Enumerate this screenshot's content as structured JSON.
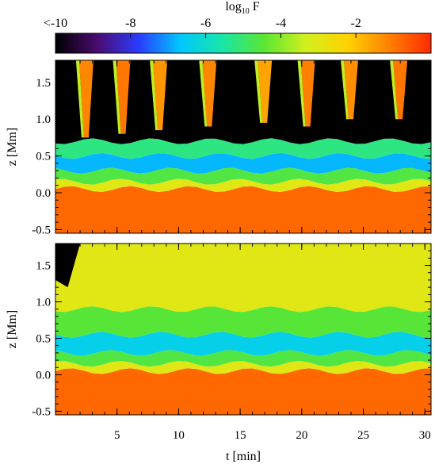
{
  "colorbar": {
    "title_main": "log",
    "title_sub": "10",
    "title_var": " F",
    "ticks": [
      {
        "value": -10,
        "label": "<-10"
      },
      {
        "value": -8,
        "label": "-8"
      },
      {
        "value": -6,
        "label": "-6"
      },
      {
        "value": -4,
        "label": "-4"
      },
      {
        "value": -2,
        "label": "-2"
      }
    ],
    "range": [
      -10,
      0
    ],
    "stops": [
      "#000000",
      "#4a0a6e",
      "#2a3cff",
      "#00c8ff",
      "#18e6a8",
      "#5ae632",
      "#d2f01e",
      "#ffd200",
      "#ff8000",
      "#ff2a00"
    ]
  },
  "chart_data": [
    {
      "type": "heatmap",
      "panel": "top",
      "title": "",
      "xlabel": "t [min]",
      "ylabel": "z [Mm]",
      "xlim": [
        0,
        30.5
      ],
      "ylim": [
        -0.55,
        1.8
      ],
      "xticks": [
        5,
        10,
        15,
        20,
        25,
        30
      ],
      "yticks": [
        -0.5,
        0.0,
        0.5,
        1.0,
        1.5
      ],
      "ytick_labels": [
        "-0.5",
        "0.0",
        "0.5",
        "1.0",
        "1.5"
      ],
      "colorscale_var": "log10 F",
      "bands": [
        {
          "z_min": -0.55,
          "z_max": 0.05,
          "value": -0.8
        },
        {
          "z_min": 0.05,
          "z_max": 0.15,
          "value": -3.0
        },
        {
          "z_min": 0.15,
          "z_max": 0.3,
          "value": -4.6
        },
        {
          "z_min": 0.3,
          "z_max": 0.5,
          "value": -6.8
        },
        {
          "z_min": 0.5,
          "z_max": 0.7,
          "value": -5.2
        },
        {
          "z_min": 0.7,
          "z_max": 1.8,
          "value": -10
        }
      ],
      "features": [
        {
          "kind": "spike",
          "t": 2.5,
          "z_base": 0.75,
          "z_top": 1.8,
          "value": -1.2
        },
        {
          "kind": "spike",
          "t": 5.5,
          "z_base": 0.8,
          "z_top": 1.8,
          "value": -1.0
        },
        {
          "kind": "spike",
          "t": 8.5,
          "z_base": 0.85,
          "z_top": 1.8,
          "value": -1.4
        },
        {
          "kind": "spike",
          "t": 12.5,
          "z_base": 0.9,
          "z_top": 1.8,
          "value": -1.2
        },
        {
          "kind": "spike",
          "t": 17.0,
          "z_base": 0.95,
          "z_top": 1.8,
          "value": -1.6
        },
        {
          "kind": "spike",
          "t": 20.5,
          "z_base": 0.9,
          "z_top": 1.8,
          "value": -1.1
        },
        {
          "kind": "spike",
          "t": 24.0,
          "z_base": 1.0,
          "z_top": 1.8,
          "value": -1.3
        },
        {
          "kind": "spike",
          "t": 28.0,
          "z_base": 1.0,
          "z_top": 1.8,
          "value": -1.0
        }
      ]
    },
    {
      "type": "heatmap",
      "panel": "bottom",
      "title": "",
      "xlabel": "t [min]",
      "ylabel": "z [Mm]",
      "xlim": [
        0,
        30.5
      ],
      "ylim": [
        -0.55,
        1.8
      ],
      "xticks": [
        5,
        10,
        15,
        20,
        25,
        30
      ],
      "xtick_labels": [
        "5",
        "10",
        "15",
        "20",
        "25",
        "30"
      ],
      "yticks": [
        -0.5,
        0.0,
        0.5,
        1.0,
        1.5
      ],
      "ytick_labels": [
        "-0.5",
        "0.0",
        "0.5",
        "1.0",
        "1.5"
      ],
      "colorscale_var": "log10 F",
      "bands": [
        {
          "z_min": -0.55,
          "z_max": 0.05,
          "value": -0.8
        },
        {
          "z_min": 0.05,
          "z_max": 0.15,
          "value": -3.0
        },
        {
          "z_min": 0.15,
          "z_max": 0.3,
          "value": -4.6
        },
        {
          "z_min": 0.3,
          "z_max": 0.55,
          "value": -6.4
        },
        {
          "z_min": 0.55,
          "z_max": 0.9,
          "value": -4.5
        },
        {
          "z_min": 0.9,
          "z_max": 1.8,
          "value": -3.0
        }
      ],
      "features": [
        {
          "kind": "dark-corner",
          "t_max": 2.0,
          "z_min": 1.2,
          "value": -10
        }
      ]
    }
  ]
}
